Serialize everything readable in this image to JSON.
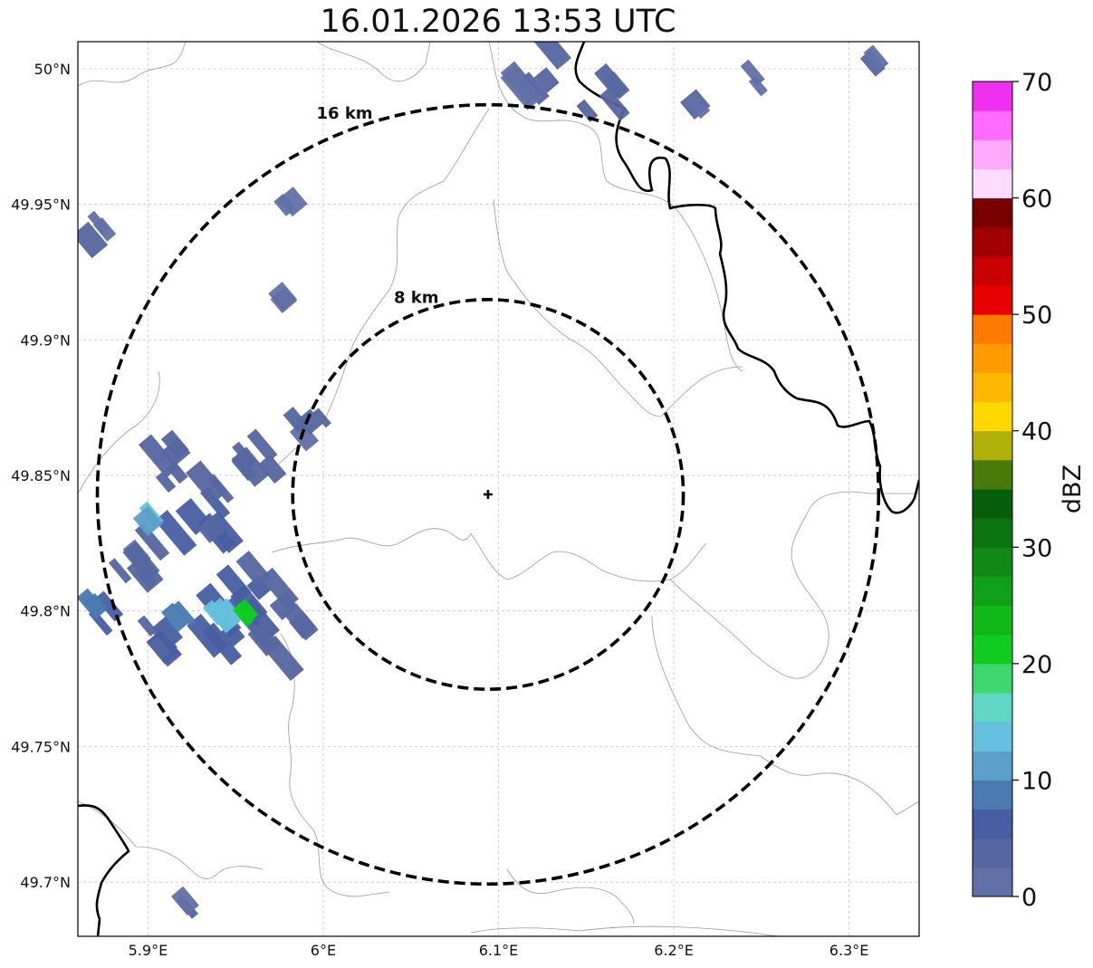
{
  "title": "16.01.2026 13:53 UTC",
  "map": {
    "extent": {
      "lon_min": 5.86,
      "lon_max": 6.34,
      "lat_min": 49.68,
      "lat_max": 50.01
    },
    "gridlines": true,
    "lon_ticks": [
      {
        "value": 5.9,
        "label": "5.9°E"
      },
      {
        "value": 6.0,
        "label": "6°E"
      },
      {
        "value": 6.1,
        "label": "6.1°E"
      },
      {
        "value": 6.2,
        "label": "6.2°E"
      },
      {
        "value": 6.3,
        "label": "6.3°E"
      }
    ],
    "lat_ticks": [
      {
        "value": 50.0,
        "label": "50°N"
      },
      {
        "value": 49.95,
        "label": "49.95°N"
      },
      {
        "value": 49.9,
        "label": "49.9°N"
      },
      {
        "value": 49.85,
        "label": "49.85°N"
      },
      {
        "value": 49.8,
        "label": "49.8°N"
      },
      {
        "value": 49.75,
        "label": "49.75°N"
      },
      {
        "value": 49.7,
        "label": "49.7°N"
      }
    ],
    "center": {
      "lon": 6.094,
      "lat": 49.843,
      "marker": "plus-marker"
    },
    "range_rings": [
      {
        "radius_km": 8,
        "label": "8 km"
      },
      {
        "radius_km": 16,
        "label": "16 km"
      }
    ],
    "echoes": [
      {
        "lon": 5.895,
        "lat": 49.82,
        "dbz": 4,
        "size": 0.5
      },
      {
        "lon": 5.93,
        "lat": 49.835,
        "dbz": 6,
        "size": 0.6
      },
      {
        "lon": 5.95,
        "lat": 49.8,
        "dbz": 7,
        "size": 0.7
      },
      {
        "lon": 5.92,
        "lat": 49.855,
        "dbz": 5,
        "size": 0.5
      },
      {
        "lon": 5.9,
        "lat": 49.79,
        "dbz": 6,
        "size": 0.5
      },
      {
        "lon": 5.975,
        "lat": 49.79,
        "dbz": 5,
        "size": 0.5
      },
      {
        "lon": 5.965,
        "lat": 49.86,
        "dbz": 4,
        "size": 0.45
      },
      {
        "lon": 5.99,
        "lat": 49.87,
        "dbz": 4,
        "size": 0.35
      },
      {
        "lon": 5.965,
        "lat": 49.81,
        "dbz": 6,
        "size": 0.45
      },
      {
        "lon": 5.905,
        "lat": 49.835,
        "dbz": 13,
        "size": 0.18
      },
      {
        "lon": 5.945,
        "lat": 49.795,
        "dbz": 15,
        "size": 0.25
      },
      {
        "lon": 5.955,
        "lat": 49.8,
        "dbz": 21,
        "size": 0.1
      },
      {
        "lon": 5.92,
        "lat": 49.8,
        "dbz": 9,
        "size": 0.2
      },
      {
        "lon": 5.87,
        "lat": 49.8,
        "dbz": 8,
        "size": 0.3
      },
      {
        "lon": 5.87,
        "lat": 49.94,
        "dbz": 4,
        "size": 0.25
      },
      {
        "lon": 5.92,
        "lat": 49.69,
        "dbz": 3,
        "size": 0.2
      },
      {
        "lon": 5.98,
        "lat": 49.95,
        "dbz": 3,
        "size": 0.1
      },
      {
        "lon": 5.98,
        "lat": 49.915,
        "dbz": 3,
        "size": 0.12
      },
      {
        "lon": 6.125,
        "lat": 50.0,
        "dbz": 4,
        "size": 0.45
      },
      {
        "lon": 6.16,
        "lat": 49.99,
        "dbz": 5,
        "size": 0.35
      },
      {
        "lon": 6.21,
        "lat": 49.985,
        "dbz": 3,
        "size": 0.15
      },
      {
        "lon": 6.25,
        "lat": 49.995,
        "dbz": 3,
        "size": 0.2
      },
      {
        "lon": 6.31,
        "lat": 50.005,
        "dbz": 3,
        "size": 0.2
      }
    ]
  },
  "colorbar": {
    "label": "dBZ",
    "min": 0,
    "max": 70,
    "step": 2.5,
    "ticks": [
      {
        "value": 0,
        "label": "0"
      },
      {
        "value": 10,
        "label": "10"
      },
      {
        "value": 20,
        "label": "20"
      },
      {
        "value": 30,
        "label": "30"
      },
      {
        "value": 40,
        "label": "40"
      },
      {
        "value": 50,
        "label": "50"
      },
      {
        "value": 60,
        "label": "60"
      },
      {
        "value": 70,
        "label": "70"
      }
    ],
    "colors": [
      "#6170a6",
      "#5566a0",
      "#485ea2",
      "#4a7ab0",
      "#5aa0c8",
      "#64c0dc",
      "#60d6c4",
      "#3ed66e",
      "#10cc20",
      "#10b818",
      "#10a018",
      "#108a14",
      "#0a7410",
      "#065e0a",
      "#487a0a",
      "#b0b00a",
      "#ffd800",
      "#ffb800",
      "#ff9a00",
      "#ff7a00",
      "#e80000",
      "#c80000",
      "#a00000",
      "#780000",
      "#ffdcff",
      "#ffaaff",
      "#ff6aff",
      "#f030f0"
    ]
  }
}
